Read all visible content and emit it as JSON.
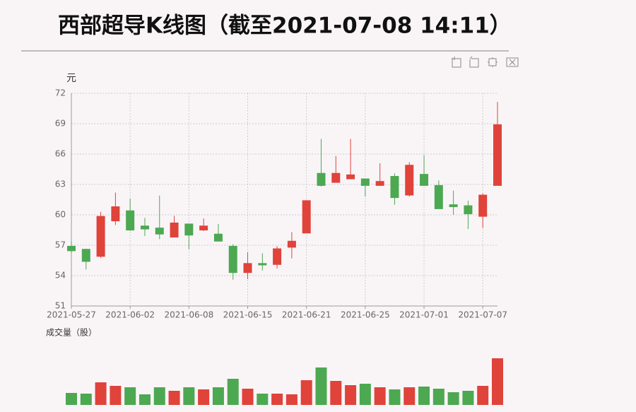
{
  "chart_data": [
    {
      "type": "candlestick",
      "title": "西部超导K线图（截至2021-07-08 14:11）",
      "y_label": "元",
      "categories": [
        "2021-05-27",
        null,
        null,
        null,
        "2021-06-02",
        null,
        null,
        null,
        "2021-06-08",
        null,
        null,
        null,
        "2021-06-15",
        null,
        null,
        null,
        "2021-06-21",
        null,
        null,
        null,
        "2021-06-25",
        null,
        null,
        null,
        "2021-07-01",
        null,
        null,
        null,
        "2021-07-07",
        null
      ],
      "open": [
        56.9,
        56.6,
        55.9,
        59.4,
        60.4,
        58.9,
        58.7,
        57.8,
        59.1,
        58.5,
        58.1,
        56.9,
        54.3,
        55.2,
        55.1,
        56.8,
        58.2,
        64.1,
        63.2,
        63.55,
        63.55,
        62.9,
        63.8,
        61.95,
        64.0,
        62.9,
        61.0,
        60.9,
        59.85,
        62.9
      ],
      "close": [
        56.45,
        55.4,
        59.85,
        60.8,
        58.5,
        58.6,
        58.1,
        59.2,
        58.0,
        58.9,
        57.4,
        54.3,
        55.2,
        55.05,
        56.65,
        57.4,
        61.4,
        62.9,
        64.1,
        63.95,
        62.9,
        63.3,
        61.7,
        64.9,
        62.9,
        60.6,
        60.8,
        60.1,
        61.95,
        68.9
      ],
      "high": [
        57.4,
        56.65,
        60.3,
        62.2,
        61.6,
        59.7,
        61.9,
        59.9,
        59.1,
        59.65,
        59.1,
        57.1,
        56.3,
        56.2,
        56.9,
        58.3,
        61.45,
        67.5,
        65.8,
        67.5,
        63.55,
        65.1,
        64.1,
        65.2,
        65.9,
        63.4,
        62.4,
        61.4,
        62.1,
        71.15
      ],
      "low": [
        56.2,
        54.6,
        55.75,
        59.0,
        58.4,
        57.9,
        57.6,
        57.8,
        56.6,
        58.4,
        57.4,
        53.6,
        53.65,
        54.5,
        54.7,
        55.7,
        58.2,
        62.8,
        63.2,
        63.55,
        61.8,
        62.9,
        61.0,
        61.8,
        62.9,
        60.6,
        60.0,
        58.6,
        58.7,
        62.9
      ],
      "up_color": "#e0433a",
      "down_color": "#4da852",
      "ylim": [
        51,
        72
      ],
      "yticks": [
        51,
        54,
        57,
        60,
        63,
        66,
        69,
        72
      ],
      "grid": true
    },
    {
      "type": "bar",
      "title": "成交量（股）",
      "values": [
        17,
        16,
        32,
        27,
        25,
        15,
        25,
        20,
        25,
        22,
        25,
        37,
        23,
        16,
        16,
        15,
        35,
        53,
        34,
        28,
        30,
        25,
        22,
        25,
        26,
        23,
        18,
        20,
        27,
        66
      ]
    }
  ]
}
